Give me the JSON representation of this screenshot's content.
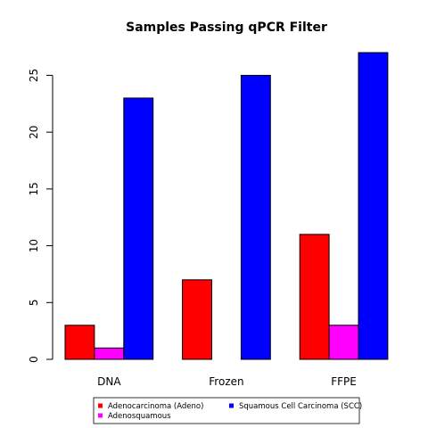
{
  "chart_data": {
    "type": "bar",
    "title": "Samples Passing qPCR Filter",
    "xlabel": "",
    "ylabel": "",
    "categories": [
      "DNA",
      "Frozen",
      "FFPE"
    ],
    "series": [
      {
        "name": "Adenocarcinoma (Adeno)",
        "color": "#ff0000",
        "values": [
          3,
          7,
          11
        ]
      },
      {
        "name": "Adenosquamous",
        "color": "#ff00ff",
        "values": [
          1,
          0,
          3
        ]
      },
      {
        "name": "Squamous Cell Carcinoma (SCC)",
        "color": "#0000ff",
        "values": [
          23,
          25,
          27
        ]
      }
    ],
    "yticks": [
      0,
      5,
      10,
      15,
      20,
      25
    ],
    "ylim": [
      0,
      27
    ],
    "grid": false,
    "legend_position": "bottom"
  }
}
